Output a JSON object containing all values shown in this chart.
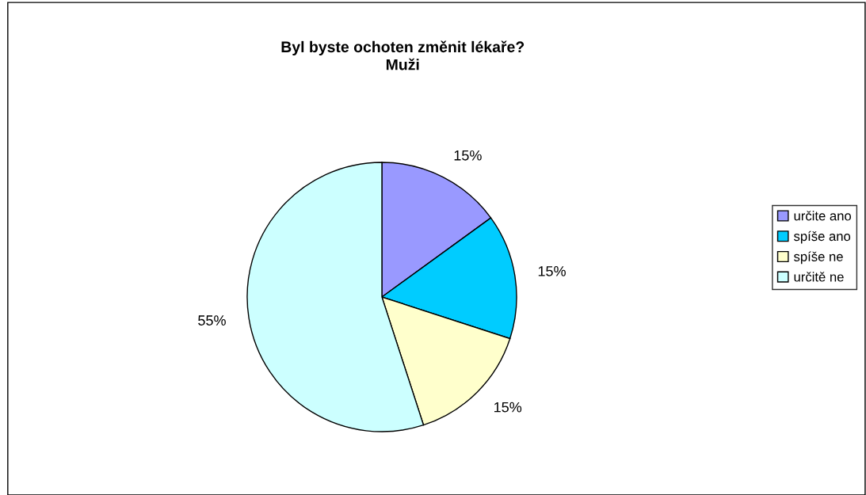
{
  "chart_data": {
    "type": "pie",
    "title": "Byl byste ochoten změnit lékaře?\nMuži",
    "categories": [
      "určite ano",
      "spíše ano",
      "spíše ne",
      "určitě ne"
    ],
    "values": [
      15,
      15,
      15,
      55
    ],
    "value_labels": [
      "15%",
      "15%",
      "15%",
      "55%"
    ],
    "colors": [
      "#9999ff",
      "#00ccff",
      "#ffffcc",
      "#ccffff"
    ],
    "legend": "right"
  }
}
